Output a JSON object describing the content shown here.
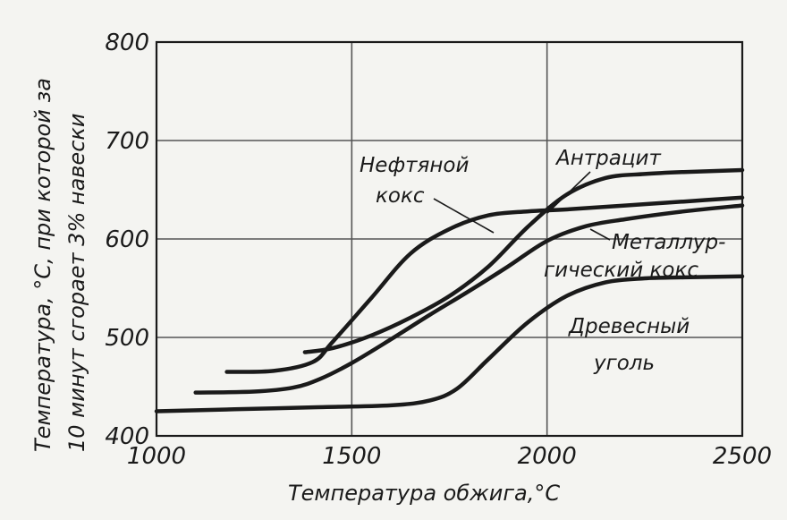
{
  "chart_data": {
    "type": "line",
    "xlabel": "Температура обжига,°С",
    "ylabel_line1": "Температура, °С, при которой за",
    "ylabel_line2": "10 минут сгорает 3% навески",
    "xlim": [
      1000,
      2500
    ],
    "ylim": [
      400,
      800
    ],
    "x_ticks": [
      1000,
      1500,
      2000,
      2500
    ],
    "y_ticks": [
      400,
      500,
      600,
      700,
      800
    ],
    "x_tick_labels": [
      "1000",
      "1500",
      "2000",
      "2500"
    ],
    "y_tick_labels": [
      "400",
      "500",
      "600",
      "700",
      "800"
    ],
    "grid": true,
    "series": [
      {
        "name": "Нефтяной кокс",
        "x": [
          1180,
          1300,
          1400,
          1450,
          1550,
          1650,
          1750,
          1850,
          1950,
          2050,
          2200,
          2350,
          2500
        ],
        "y": [
          465,
          466,
          475,
          495,
          540,
          585,
          610,
          624,
          628,
          630,
          634,
          638,
          642
        ]
      },
      {
        "name": "Антрацит",
        "x": [
          1380,
          1450,
          1550,
          1650,
          1750,
          1850,
          1950,
          2050,
          2150,
          2250,
          2350,
          2500
        ],
        "y": [
          485,
          489,
          502,
          520,
          542,
          572,
          612,
          645,
          662,
          666,
          668,
          670
        ]
      },
      {
        "name": "Металлургический кокс",
        "x": [
          1100,
          1250,
          1350,
          1420,
          1500,
          1600,
          1700,
          1800,
          1900,
          2000,
          2100,
          2200,
          2350,
          2500
        ],
        "y": [
          444,
          445,
          449,
          458,
          474,
          498,
          523,
          547,
          572,
          598,
          613,
          620,
          628,
          634
        ]
      },
      {
        "name": "Древесный уголь",
        "x": [
          1000,
          1200,
          1400,
          1600,
          1700,
          1770,
          1850,
          1950,
          2050,
          2150,
          2250,
          2350,
          2500
        ],
        "y": [
          425,
          427,
          429,
          431,
          436,
          448,
          478,
          515,
          542,
          556,
          560,
          561,
          562
        ]
      }
    ]
  },
  "annotations": {
    "neft": [
      "Нефтяной",
      "кокс"
    ],
    "antr": [
      "Антрацит"
    ],
    "met": [
      "Металлур-",
      "гический кокс"
    ],
    "drev": [
      "Древесный",
      "уголь"
    ]
  }
}
